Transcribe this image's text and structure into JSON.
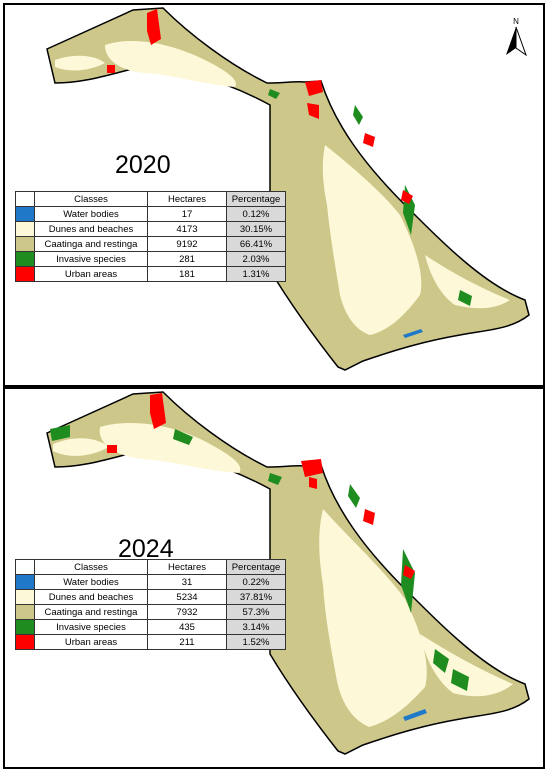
{
  "north_label": "N",
  "colors": {
    "water": "#1f78c8",
    "dunes": "#fdf8d8",
    "caatinga": "#cdc789",
    "invasive": "#1e8c1e",
    "urban": "#ff0000",
    "pct_column": "#d9d9d9"
  },
  "headers": {
    "classes": "Classes",
    "hectares": "Hectares",
    "percentage": "Percentage"
  },
  "panels": [
    {
      "year": "2020",
      "rows": [
        {
          "class": "Water bodies",
          "hectares": "17",
          "percentage": "0.12%",
          "color": "#1f78c8"
        },
        {
          "class": "Dunes and beaches",
          "hectares": "4173",
          "percentage": "30.15%",
          "color": "#fdf8d8"
        },
        {
          "class": "Caatinga and restinga",
          "hectares": "9192",
          "percentage": "66.41%",
          "color": "#cdc789"
        },
        {
          "class": "Invasive species",
          "hectares": "281",
          "percentage": "2.03%",
          "color": "#1e8c1e"
        },
        {
          "class": "Urban areas",
          "hectares": "181",
          "percentage": "1.31%",
          "color": "#ff0000"
        }
      ]
    },
    {
      "year": "2024",
      "rows": [
        {
          "class": "Water bodies",
          "hectares": "31",
          "percentage": "0.22%",
          "color": "#1f78c8"
        },
        {
          "class": "Dunes and beaches",
          "hectares": "5234",
          "percentage": "37.81%",
          "color": "#fdf8d8"
        },
        {
          "class": "Caatinga and restinga",
          "hectares": "7932",
          "percentage": "57.3%",
          "color": "#cdc789"
        },
        {
          "class": "Invasive species",
          "hectares": "435",
          "percentage": "3.14%",
          "color": "#1e8c1e"
        },
        {
          "class": "Urban areas",
          "hectares": "211",
          "percentage": "1.52%",
          "color": "#ff0000"
        }
      ]
    }
  ]
}
